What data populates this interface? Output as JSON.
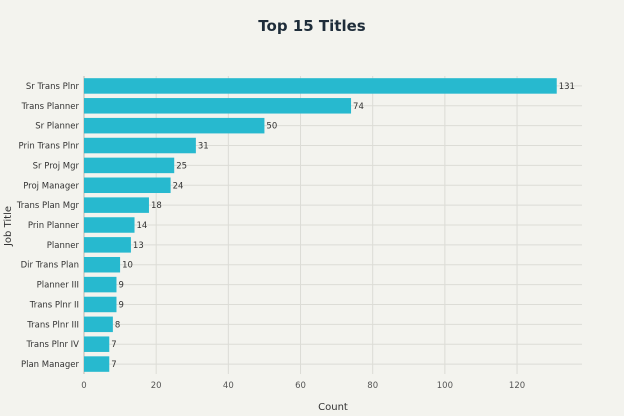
{
  "chart_data": {
    "type": "bar",
    "orientation": "horizontal",
    "title": "Top 15 Titles",
    "xlabel": "Count",
    "ylabel": "Job Title",
    "categories": [
      "Sr Trans Plnr",
      "Trans Planner",
      "Sr Planner",
      "Prin Trans Plnr",
      "Sr Proj Mgr",
      "Proj Manager",
      "Trans Plan Mgr",
      "Prin Planner",
      "Planner",
      "Dir Trans Plan",
      "Planner III",
      "Trans Plnr II",
      "Trans Plnr III",
      "Trans Plnr IV",
      "Plan Manager"
    ],
    "values": [
      131,
      74,
      50,
      31,
      25,
      24,
      18,
      14,
      13,
      10,
      9,
      9,
      8,
      7,
      7
    ],
    "xticks": [
      0,
      20,
      40,
      60,
      80,
      100,
      120
    ],
    "xlim": [
      0,
      138
    ],
    "grid": true,
    "bar_color": "#27b9cf"
  }
}
